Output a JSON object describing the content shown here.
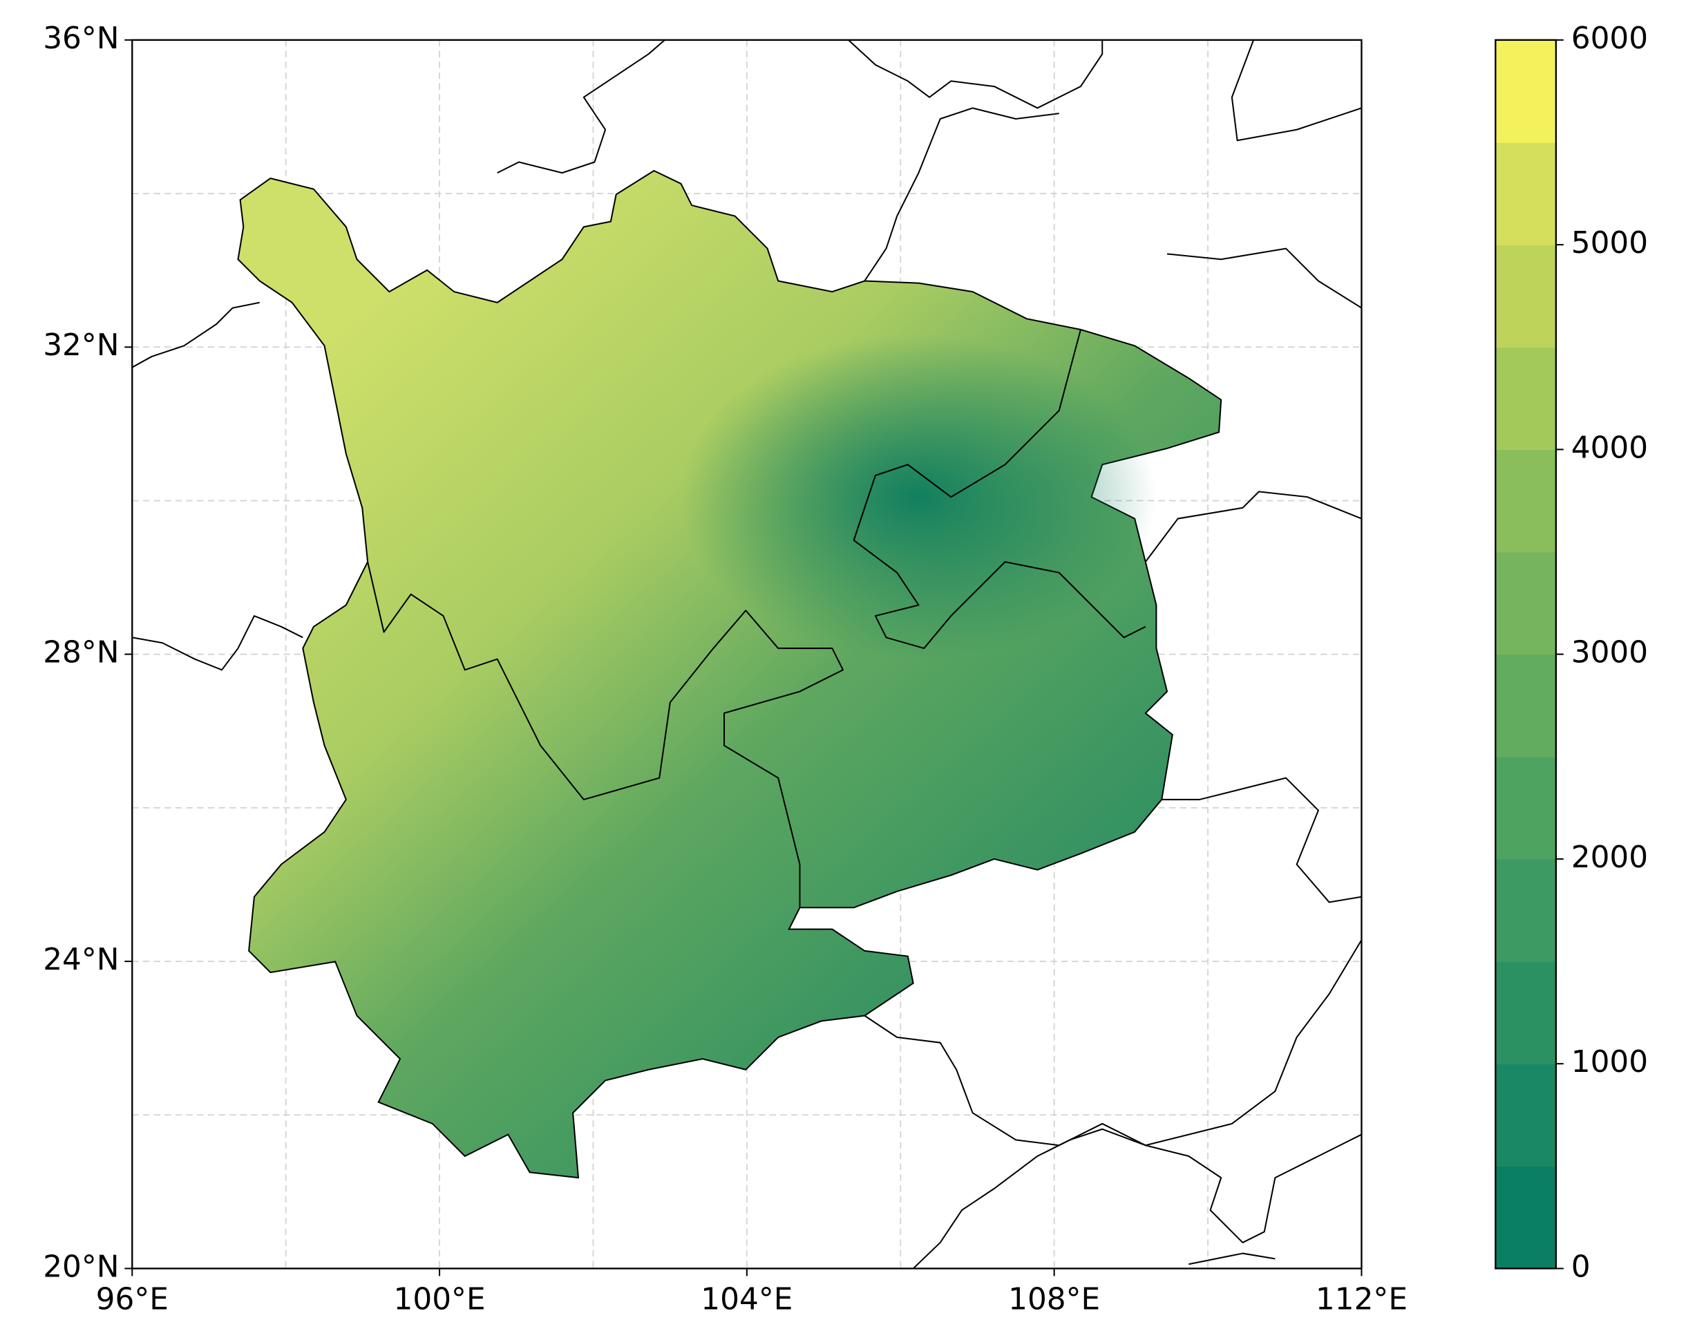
{
  "chart_data": {
    "type": "map",
    "xlim": [
      96,
      112
    ],
    "ylim": [
      20,
      36
    ],
    "xticks": [
      {
        "value": 96,
        "label": "96°E"
      },
      {
        "value": 100,
        "label": "100°E"
      },
      {
        "value": 104,
        "label": "104°E"
      },
      {
        "value": 108,
        "label": "108°E"
      },
      {
        "value": 112,
        "label": "112°E"
      }
    ],
    "yticks": [
      {
        "value": 20,
        "label": "20°N"
      },
      {
        "value": 24,
        "label": "24°N"
      },
      {
        "value": 28,
        "label": "28°N"
      },
      {
        "value": 32,
        "label": "32°N"
      },
      {
        "value": 36,
        "label": "36°N"
      }
    ],
    "xgrid": [
      98,
      100,
      102,
      104,
      106,
      108,
      110
    ],
    "ygrid": [
      22,
      24,
      26,
      28,
      30,
      32,
      34
    ],
    "grid": true,
    "colorbar": {
      "lim": [
        0,
        6000
      ],
      "ticks": [
        0,
        1000,
        2000,
        3000,
        4000,
        5000,
        6000
      ],
      "levels": [
        0,
        500,
        1000,
        1500,
        2000,
        2500,
        3000,
        3500,
        4000,
        4500,
        5000,
        5500,
        6000
      ],
      "colors": [
        "#0b7f63",
        "#1a8864",
        "#2b9163",
        "#3d9a62",
        "#4fa361",
        "#62ac5f",
        "#76b55d",
        "#8abe5b",
        "#a3c95a",
        "#bdd35a",
        "#d6df5c",
        "#f4f25c"
      ]
    }
  }
}
